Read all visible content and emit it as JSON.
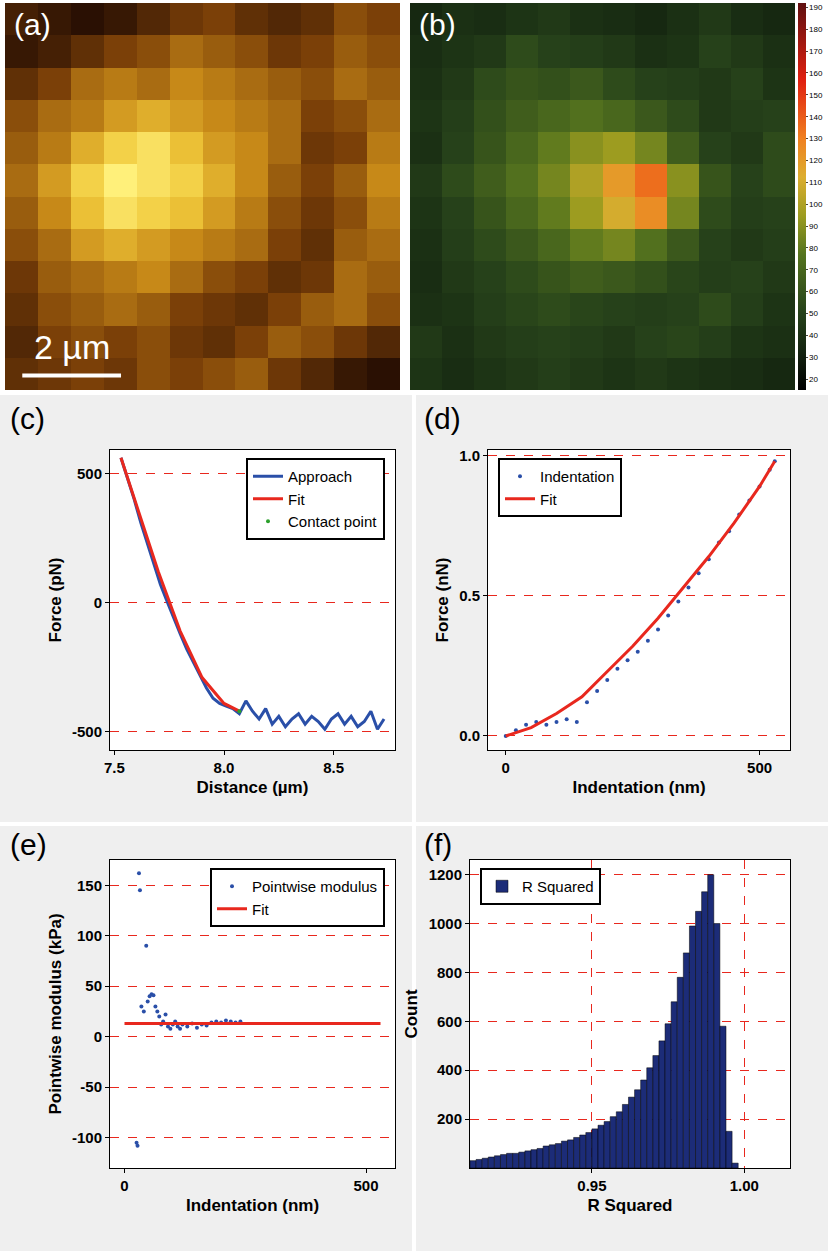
{
  "chart_data": [
    {
      "type": "heatmap",
      "label": "(a)",
      "tick_labels": false,
      "xlim": [
        0,
        8
      ],
      "ylim": [
        0,
        8
      ],
      "scale_bar": {
        "length": 2,
        "label": "2 µm"
      },
      "z": [
        [
          20,
          15,
          10,
          15,
          25,
          35,
          40,
          30,
          25,
          30,
          45,
          40
        ],
        [
          15,
          20,
          30,
          40,
          45,
          55,
          50,
          45,
          35,
          40,
          50,
          45
        ],
        [
          30,
          40,
          55,
          60,
          55,
          65,
          60,
          55,
          50,
          45,
          55,
          50
        ],
        [
          45,
          55,
          60,
          70,
          75,
          70,
          65,
          60,
          55,
          40,
          45,
          55
        ],
        [
          50,
          60,
          75,
          85,
          90,
          80,
          70,
          65,
          55,
          35,
          40,
          60
        ],
        [
          55,
          70,
          85,
          95,
          90,
          85,
          75,
          65,
          50,
          40,
          50,
          65
        ],
        [
          50,
          65,
          80,
          90,
          85,
          80,
          70,
          60,
          45,
          35,
          45,
          60
        ],
        [
          45,
          55,
          70,
          75,
          70,
          65,
          60,
          55,
          40,
          30,
          50,
          55
        ],
        [
          35,
          50,
          55,
          60,
          65,
          55,
          45,
          40,
          30,
          35,
          55,
          50
        ],
        [
          30,
          45,
          50,
          55,
          50,
          40,
          35,
          30,
          40,
          50,
          55,
          45
        ],
        [
          25,
          40,
          45,
          40,
          45,
          35,
          30,
          40,
          50,
          45,
          35,
          25
        ],
        [
          30,
          35,
          40,
          35,
          45,
          40,
          45,
          50,
          35,
          25,
          15,
          10
        ]
      ]
    },
    {
      "type": "heatmap",
      "label": "(b)",
      "tick_labels": false,
      "xlim": [
        0,
        8
      ],
      "ylim": [
        0,
        8
      ],
      "zlim": [
        15,
        192
      ],
      "zticks": [
        20,
        30,
        40,
        50,
        60,
        70,
        80,
        90,
        100,
        110,
        120,
        130,
        140,
        150,
        160,
        170,
        180,
        190
      ],
      "z": [
        [
          35,
          40,
          38,
          42,
          45,
          40,
          38,
          35,
          40,
          45,
          38,
          35
        ],
        [
          38,
          42,
          45,
          55,
          50,
          48,
          45,
          40,
          42,
          50,
          45,
          40
        ],
        [
          40,
          45,
          55,
          60,
          58,
          62,
          55,
          50,
          48,
          45,
          50,
          42
        ],
        [
          42,
          48,
          58,
          65,
          70,
          75,
          70,
          62,
          55,
          45,
          48,
          50
        ],
        [
          40,
          50,
          60,
          70,
          80,
          90,
          95,
          85,
          65,
          50,
          45,
          55
        ],
        [
          45,
          55,
          65,
          75,
          85,
          100,
          120,
          135,
          90,
          60,
          50,
          55
        ],
        [
          42,
          50,
          60,
          70,
          80,
          95,
          110,
          125,
          85,
          55,
          48,
          50
        ],
        [
          40,
          48,
          55,
          62,
          70,
          80,
          85,
          75,
          62,
          50,
          45,
          48
        ],
        [
          38,
          45,
          50,
          55,
          60,
          65,
          62,
          58,
          52,
          48,
          50,
          45
        ],
        [
          40,
          42,
          48,
          52,
          55,
          52,
          50,
          48,
          50,
          55,
          48,
          42
        ],
        [
          45,
          40,
          45,
          48,
          50,
          48,
          45,
          50,
          52,
          48,
          42,
          40
        ],
        [
          42,
          38,
          42,
          45,
          48,
          45,
          42,
          45,
          42,
          40,
          38,
          35
        ]
      ]
    },
    {
      "type": "line",
      "label": "(c)",
      "xlabel": "Distance (µm)",
      "ylabel": "Force (pN)",
      "xlim": [
        7.48,
        8.78
      ],
      "ylim": [
        -570,
        590
      ],
      "xticks": [
        7.5,
        {
          "value": 8,
          "label": "8.0"
        },
        8.5
      ],
      "yticks": [
        -500,
        0,
        500
      ],
      "grid": "y",
      "legend": "upper right",
      "series": [
        {
          "name": "Approach",
          "type": "line",
          "color": "#2a4fa8",
          "x": [
            7.53,
            7.56,
            7.59,
            7.62,
            7.65,
            7.68,
            7.71,
            7.74,
            7.77,
            7.8,
            7.83,
            7.86,
            7.89,
            7.92,
            7.95,
            7.98,
            8.01,
            8.04,
            8.07,
            8.1,
            8.13,
            8.16,
            8.19,
            8.22,
            8.25,
            8.28,
            8.31,
            8.34,
            8.37,
            8.4,
            8.43,
            8.46,
            8.49,
            8.52,
            8.55,
            8.58,
            8.61,
            8.64,
            8.67,
            8.7,
            8.73
          ],
          "values": [
            560,
            480,
            400,
            310,
            230,
            150,
            70,
            5,
            -60,
            -120,
            -180,
            -230,
            -280,
            -330,
            -370,
            -390,
            -400,
            -410,
            -430,
            -380,
            -420,
            -450,
            -410,
            -470,
            -440,
            -480,
            -450,
            -430,
            -470,
            -440,
            -460,
            -490,
            -450,
            -430,
            -470,
            -440,
            -480,
            -460,
            -420,
            -490,
            -450
          ]
        },
        {
          "name": "Fit",
          "type": "line",
          "color": "#e8281e",
          "x": [
            7.53,
            7.6,
            7.7,
            7.8,
            7.9,
            8.0,
            8.07
          ],
          "values": [
            560,
            380,
            120,
            -110,
            -290,
            -390,
            -420
          ]
        },
        {
          "name": "Contact point",
          "type": "scatter",
          "marker": "circle",
          "color": "#2ca02c",
          "x": [
            8.07
          ],
          "values": [
            -420
          ]
        }
      ]
    },
    {
      "type": "line",
      "label": "(d)",
      "xlabel": "Indentation (nm)",
      "ylabel": "Force (nN)",
      "xlim": [
        -35,
        560
      ],
      "ylim": [
        -0.05,
        1.02
      ],
      "xticks": [
        0,
        500
      ],
      "yticks": [
        {
          "value": 0,
          "label": "0.0"
        },
        0.5,
        {
          "value": 1,
          "label": "1.0"
        }
      ],
      "grid": "y",
      "legend": "upper left",
      "series": [
        {
          "name": "Indentation",
          "type": "scatter",
          "marker": "circle",
          "color": "#2a4fa8",
          "x": [
            0,
            20,
            40,
            60,
            80,
            100,
            120,
            140,
            160,
            180,
            200,
            220,
            240,
            260,
            280,
            300,
            320,
            340,
            360,
            380,
            400,
            420,
            440,
            460,
            480,
            500,
            520,
            530
          ],
          "values": [
            0,
            0.02,
            0.04,
            0.05,
            0.04,
            0.05,
            0.06,
            0.05,
            0.12,
            0.16,
            0.2,
            0.24,
            0.27,
            0.3,
            0.34,
            0.38,
            0.43,
            0.48,
            0.53,
            0.58,
            0.63,
            0.69,
            0.73,
            0.79,
            0.84,
            0.89,
            0.95,
            0.98
          ]
        },
        {
          "name": "Fit",
          "type": "line",
          "color": "#e8281e",
          "x": [
            0,
            50,
            100,
            150,
            200,
            250,
            300,
            350,
            400,
            450,
            500,
            530
          ],
          "values": [
            0,
            0.03,
            0.08,
            0.14,
            0.23,
            0.32,
            0.42,
            0.53,
            0.64,
            0.76,
            0.89,
            0.98
          ]
        }
      ]
    },
    {
      "type": "line",
      "label": "(e)",
      "xlabel": "Indentation (nm)",
      "ylabel": "Pointwise modulus (kPa)",
      "xlim": [
        -30,
        560
      ],
      "ylim": [
        -130,
        175
      ],
      "xticks": [
        0,
        500
      ],
      "yticks": [
        -100,
        -50,
        0,
        50,
        100,
        150
      ],
      "grid": "y",
      "legend": "upper right",
      "series": [
        {
          "name": "Pointwise modulus",
          "type": "scatter",
          "marker": "circle",
          "color": "#2a4fa8",
          "x": [
            25,
            27,
            30,
            32,
            35,
            40,
            45,
            48,
            52,
            56,
            60,
            64,
            68,
            72,
            76,
            80,
            85,
            90,
            95,
            100,
            105,
            110,
            115,
            120,
            130,
            140,
            150,
            160,
            170,
            180,
            190,
            200,
            210,
            220,
            230,
            240
          ],
          "values": [
            -105,
            -108,
            162,
            145,
            30,
            25,
            90,
            35,
            40,
            42,
            41,
            30,
            25,
            20,
            12,
            15,
            22,
            10,
            8,
            12,
            15,
            10,
            8,
            12,
            10,
            13,
            9,
            12,
            11,
            14,
            15,
            14,
            16,
            15,
            14,
            15
          ]
        },
        {
          "name": "Fit",
          "type": "line",
          "color": "#e8281e",
          "x": [
            0,
            530
          ],
          "values": [
            13,
            13
          ]
        }
      ]
    },
    {
      "type": "histogram",
      "label": "(f)",
      "xlabel": "R Squared",
      "ylabel": "Count",
      "xlim": [
        0.91,
        1.015
      ],
      "ylim": [
        0,
        1260
      ],
      "xticks": [
        0.95,
        {
          "value": 1,
          "label": "1.00"
        }
      ],
      "yticks": [
        200,
        400,
        600,
        800,
        1000,
        1200
      ],
      "grid": true,
      "legend": "upper left",
      "series": [
        {
          "name": "R Squared",
          "color": "#1c2c78",
          "bins": [
            0.91,
            0.912,
            0.914,
            0.916,
            0.918,
            0.92,
            0.922,
            0.924,
            0.926,
            0.928,
            0.93,
            0.932,
            0.934,
            0.936,
            0.938,
            0.94,
            0.942,
            0.944,
            0.946,
            0.948,
            0.95,
            0.952,
            0.954,
            0.956,
            0.958,
            0.96,
            0.962,
            0.964,
            0.966,
            0.968,
            0.97,
            0.972,
            0.974,
            0.976,
            0.978,
            0.98,
            0.982,
            0.984,
            0.986,
            0.988,
            0.99,
            0.992,
            0.994,
            0.996,
            0.998
          ],
          "counts": [
            30,
            35,
            40,
            45,
            50,
            55,
            60,
            60,
            65,
            70,
            75,
            80,
            90,
            95,
            100,
            110,
            115,
            125,
            135,
            145,
            160,
            175,
            190,
            210,
            230,
            260,
            290,
            320,
            360,
            410,
            460,
            520,
            590,
            680,
            780,
            880,
            990,
            1050,
            1130,
            1200,
            1000,
            580,
            150,
            20
          ]
        }
      ]
    }
  ]
}
